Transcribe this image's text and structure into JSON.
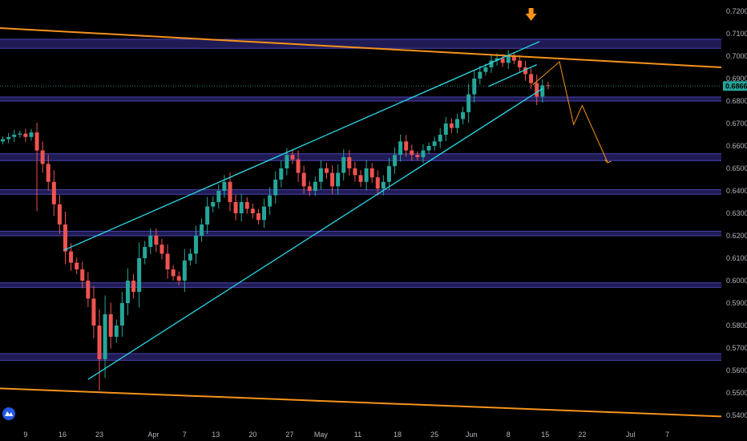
{
  "chart_data": {
    "type": "candlestick",
    "y_axis": {
      "position": "right",
      "range": [
        0.535,
        0.725
      ],
      "tick_labels": [
        "0.72000",
        "0.71000",
        "0.70000",
        "0.69000",
        "0.68000",
        "0.67000",
        "0.66000",
        "0.65000",
        "0.64000",
        "0.63000",
        "0.62000",
        "0.61000",
        "0.60000",
        "0.59000",
        "0.58000",
        "0.57000",
        "0.56000",
        "0.55000",
        "0.54000"
      ],
      "tick_values": [
        0.72,
        0.71,
        0.7,
        0.69,
        0.68,
        0.67,
        0.66,
        0.65,
        0.64,
        0.63,
        0.62,
        0.61,
        0.6,
        0.59,
        0.58,
        0.57,
        0.56,
        0.55,
        0.54
      ]
    },
    "x_axis": {
      "range": [
        0,
        127
      ],
      "tick_labels": [
        "9",
        "16",
        "23",
        "Apr",
        "7",
        "13",
        "20",
        "27",
        "May",
        "11",
        "18",
        "25",
        "Jun",
        "8",
        "15",
        "22",
        "Jul",
        "7"
      ],
      "tick_positions": [
        4.5,
        11,
        17.5,
        27,
        32.5,
        38,
        44.5,
        51,
        56.5,
        63,
        70,
        76.5,
        83,
        89.5,
        96,
        102.5,
        111,
        117.5
      ]
    },
    "current_price": {
      "label": "0.68668",
      "value": 0.68668,
      "color": "#26a69a"
    },
    "colors": {
      "bull": "#26a69a",
      "bear": "#ef5350",
      "zone": "#2a2472",
      "zone_edge": "#4b44b0",
      "trendline": "#f7931a",
      "channel": "#29d9e8"
    },
    "zones": [
      [
        0.7035,
        0.7075
      ],
      [
        0.68,
        0.6818
      ],
      [
        0.6535,
        0.6565
      ],
      [
        0.6385,
        0.6405
      ],
      [
        0.62,
        0.622
      ],
      [
        0.597,
        0.599
      ],
      [
        0.5645,
        0.5675
      ]
    ],
    "trendlines": [
      {
        "name": "upper-trendline",
        "from": [
          0,
          0.7125
        ],
        "to": [
          127,
          0.695
        ]
      },
      {
        "name": "lower-trendline",
        "from": [
          0,
          0.552
        ],
        "to": [
          127,
          0.5395
        ]
      }
    ],
    "channel_lines": [
      {
        "name": "channel-upper",
        "from": [
          11.2,
          0.6135
        ],
        "to": [
          95,
          0.7065
        ]
      },
      {
        "name": "channel-lower",
        "from": [
          15.5,
          0.556
        ],
        "to": [
          95.5,
          0.6855
        ]
      },
      {
        "name": "flag-line",
        "from": [
          86,
          0.6865
        ],
        "to": [
          94.5,
          0.6962
        ]
      }
    ],
    "projection": [
      [
        93.8,
        0.6872
      ],
      [
        98.5,
        0.6975
      ],
      [
        101,
        0.6695
      ],
      [
        102.5,
        0.678
      ],
      [
        107,
        0.6525
      ]
    ],
    "arrow_marker": {
      "x": 93.5,
      "color": "#f7931a"
    },
    "candles_seed": {
      "count": 97,
      "closes": [
        0.663,
        0.664,
        0.665,
        0.6655,
        0.664,
        0.666,
        0.658,
        0.652,
        0.644,
        0.634,
        0.625,
        0.613,
        0.608,
        0.605,
        0.6,
        0.592,
        0.58,
        0.565,
        0.585,
        0.575,
        0.58,
        0.59,
        0.6,
        0.595,
        0.61,
        0.615,
        0.62,
        0.616,
        0.612,
        0.605,
        0.602,
        0.6,
        0.609,
        0.612,
        0.62,
        0.625,
        0.633,
        0.635,
        0.64,
        0.644,
        0.635,
        0.63,
        0.635,
        0.632,
        0.63,
        0.627,
        0.633,
        0.638,
        0.645,
        0.65,
        0.656,
        0.654,
        0.648,
        0.642,
        0.64,
        0.644,
        0.65,
        0.648,
        0.642,
        0.648,
        0.655,
        0.65,
        0.647,
        0.644,
        0.65,
        0.646,
        0.641,
        0.644,
        0.651,
        0.656,
        0.662,
        0.658,
        0.656,
        0.655,
        0.658,
        0.66,
        0.662,
        0.665,
        0.67,
        0.668,
        0.672,
        0.675,
        0.683,
        0.69,
        0.693,
        0.695,
        0.698,
        0.699,
        0.697,
        0.7,
        0.698,
        0.695,
        0.692,
        0.688,
        0.682,
        0.687,
        0.6867
      ]
    }
  }
}
